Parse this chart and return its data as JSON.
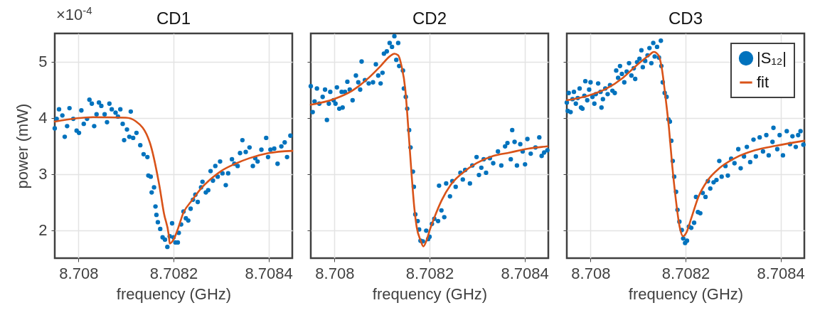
{
  "chart_data": [
    {
      "type": "scatter",
      "title": "CD1",
      "xlabel": "frequency (GHz)",
      "ylabel": "power (mW)",
      "annotations": [
        "×10$^{-4}$"
      ],
      "xlim": [
        8.70795,
        8.70845
      ],
      "ylim": [
        1.5,
        5.5
      ],
      "xticks": [
        8.708,
        8.7082,
        8.7084
      ],
      "yticks": [
        2,
        3,
        4,
        5
      ],
      "grid": true,
      "series": [
        {
          "type": "scatter",
          "marker": "circle",
          "color": "#0072bd",
          "x": [
            8.70795,
            8.707954,
            8.707959,
            8.707966,
            8.707971,
            8.707976,
            8.707981,
            8.707989,
            8.707996,
            8.708001,
            8.708006,
            8.708011,
            8.708018,
            8.708023,
            8.708028,
            8.708033,
            8.708038,
            8.708043,
            8.708048,
            8.708055,
            8.70806,
            8.708065,
            8.70807,
            8.708078,
            8.708083,
            8.708088,
            8.708093,
            8.708096,
            8.708102,
            8.708107,
            8.70811,
            8.708115,
            8.708122,
            8.70813,
            8.708137,
            8.708145,
            8.708147,
            8.708152,
            8.708154,
            8.708159,
            8.708162,
            8.708164,
            8.708167,
            8.708172,
            8.708177,
            8.708182,
            8.708187,
            8.708192,
            8.708197,
            8.7082,
            8.708204,
            8.708209,
            8.708211,
            8.708216,
            8.708221,
            8.708226,
            8.708231,
            8.708236,
            8.708241,
            8.708246,
            8.708251,
            8.708258,
            8.708261,
            8.708268,
            8.708273,
            8.708278,
            8.708283,
            8.708288,
            8.708293,
            8.708298,
            8.708303,
            8.70831,
            8.708315,
            8.708323,
            8.708328,
            8.708335,
            8.70834,
            8.708345,
            8.708352,
            8.70836,
            8.708367,
            8.708372,
            8.708377,
            8.708385,
            8.708395,
            8.708399,
            8.708404,
            8.708412,
            8.708419,
            8.708427,
            8.708434,
            8.708439,
            8.708446
          ],
          "values": [
            3.81,
            3.98,
            4.15,
            4.04,
            3.66,
            3.85,
            4.17,
            3.98,
            3.77,
            3.73,
            4.13,
            3.89,
            3.98,
            4.32,
            4.25,
            3.85,
            4.06,
            4.27,
            4.21,
            4.06,
            3.92,
            4.25,
            4.15,
            4.09,
            4.02,
            4.15,
            3.89,
            3.6,
            3.79,
            3.66,
            4.11,
            3.64,
            3.73,
            3.51,
            3.35,
            3.3,
            2.97,
            2.95,
            2.67,
            2.76,
            2.42,
            2.27,
            2.14,
            2.02,
            1.87,
            1.83,
            1.7,
            1.89,
            2.12,
            1.87,
            1.78,
            1.78,
            1.95,
            2.1,
            2.33,
            2.21,
            2.17,
            2.38,
            2.54,
            2.63,
            2.5,
            2.76,
            2.86,
            2.67,
            2.71,
            3.05,
            2.88,
            3.14,
            2.95,
            3.22,
            3.01,
            2.8,
            3.01,
            3.26,
            3.18,
            3.14,
            3.37,
            3.6,
            3.39,
            3.47,
            3.14,
            3.28,
            3.22,
            3.43,
            3.64,
            3.3,
            3.43,
            3.45,
            3.18,
            3.49,
            3.56,
            3.3,
            3.68
          ]
        },
        {
          "type": "line",
          "color": "#d95319",
          "x": [
            8.70795,
            8.70803,
            8.7081,
            8.70812,
            8.70815,
            8.70817,
            8.70818,
            8.70819,
            8.708192,
            8.7082,
            8.70821,
            8.70822,
            8.70824,
            8.70826,
            8.70828,
            8.7083,
            8.70833,
            8.70836,
            8.7084,
            8.70845
          ],
          "values": [
            3.93,
            4.01,
            4.0,
            3.94,
            3.56,
            2.8,
            2.29,
            1.91,
            1.76,
            1.83,
            2.04,
            2.29,
            2.54,
            2.76,
            2.92,
            3.05,
            3.18,
            3.28,
            3.37,
            3.41
          ]
        }
      ]
    },
    {
      "type": "scatter",
      "title": "CD2",
      "xlabel": "frequency (GHz)",
      "xlim": [
        8.70795,
        8.70845
      ],
      "ylim": [
        1.5,
        5.5
      ],
      "xticks": [
        8.708,
        8.7082,
        8.7084
      ],
      "yticks": [
        2,
        3,
        4,
        5
      ],
      "grid": true,
      "tick_labels": "x",
      "series": [
        {
          "type": "scatter",
          "marker": "circle",
          "color": "#0072bd",
          "x": [
            8.70795,
            8.707954,
            8.707958,
            8.707963,
            8.707968,
            8.707975,
            8.70798,
            8.707984,
            8.707988,
            8.707991,
            8.707998,
            8.708002,
            8.708005,
            8.70801,
            8.708015,
            8.708017,
            8.708022,
            8.708027,
            8.708032,
            8.708038,
            8.708045,
            8.70805,
            8.708054,
            8.708057,
            8.708064,
            8.708072,
            8.708081,
            8.708087,
            8.708092,
            8.708097,
            8.708101,
            8.708104,
            8.70811,
            8.708116,
            8.708121,
            8.708126,
            8.70813,
            8.708134,
            8.708136,
            8.708144,
            8.708146,
            8.70815,
            8.708153,
            8.708157,
            8.70816,
            8.708165,
            8.708167,
            8.70817,
            8.708175,
            8.708178,
            8.708181,
            8.708186,
            8.708193,
            8.708197,
            8.7082,
            8.708205,
            8.70821,
            8.708218,
            8.70822,
            8.708225,
            8.708231,
            8.708235,
            8.708243,
            8.708248,
            8.708255,
            8.708265,
            8.70827,
            8.708275,
            8.708285,
            8.70829,
            8.708299,
            8.708304,
            8.708309,
            8.708314,
            8.708319,
            8.708327,
            8.708334,
            8.708344,
            8.708351,
            8.708359,
            8.708364,
            8.708371,
            8.708374,
            8.708379,
            8.708384,
            8.708391,
            8.708396,
            8.708401,
            8.708406,
            8.708413,
            8.708423,
            8.708431,
            8.708436,
            8.708441,
            8.708448
          ],
          "values": [
            4.56,
            4.1,
            4.29,
            4.52,
            4.25,
            4.37,
            4.5,
            3.96,
            4.25,
            4.46,
            4.31,
            4.25,
            4.54,
            4.16,
            4.46,
            4.18,
            4.46,
            4.64,
            4.5,
            4.31,
            4.75,
            4.63,
            4.5,
            5.0,
            4.67,
            4.61,
            4.63,
            4.95,
            4.75,
            4.61,
            4.8,
            5.14,
            5.18,
            5.33,
            5.26,
            5.45,
            5.03,
            5.33,
            4.92,
            4.84,
            4.52,
            4.37,
            4.16,
            3.78,
            3.47,
            3.04,
            2.77,
            2.28,
            2.16,
            2.01,
            1.81,
            1.8,
            1.99,
            1.84,
            1.88,
            2.11,
            2.2,
            2.16,
            2.79,
            2.35,
            2.23,
            2.83,
            2.6,
            2.87,
            2.77,
            3.02,
            2.9,
            3.07,
            2.83,
            3.15,
            3.3,
            2.98,
            3.11,
            3.26,
            3.02,
            3.28,
            3.19,
            3.4,
            3.15,
            3.49,
            3.55,
            3.26,
            3.78,
            3.57,
            3.15,
            3.53,
            3.4,
            3.17,
            3.62,
            3.36,
            3.47,
            3.65,
            3.32,
            3.38,
            3.42
          ]
        },
        {
          "type": "line",
          "color": "#d95319",
          "x": [
            8.70795,
            8.707998,
            8.708037,
            8.708072,
            8.708097,
            8.708116,
            8.708126,
            8.708134,
            8.708141,
            8.708149,
            8.708153,
            8.708158,
            8.708163,
            8.708168,
            8.708173,
            8.708181,
            8.708187,
            8.708193,
            8.7082,
            8.70821,
            8.708225,
            8.708245,
            8.70827,
            8.708299,
            8.708334,
            8.708369,
            8.708408,
            8.708448
          ],
          "values": [
            4.23,
            4.33,
            4.48,
            4.71,
            4.92,
            5.09,
            5.14,
            5.11,
            4.92,
            4.5,
            4.08,
            3.49,
            2.9,
            2.39,
            2.05,
            1.82,
            1.71,
            1.8,
            1.99,
            2.22,
            2.52,
            2.81,
            3.02,
            3.19,
            3.32,
            3.38,
            3.45,
            3.49
          ]
        }
      ]
    },
    {
      "type": "scatter",
      "title": "CD3",
      "xlabel": "frequency (GHz)",
      "xlim": [
        8.70795,
        8.70845
      ],
      "ylim": [
        1.5,
        5.5
      ],
      "xticks": [
        8.708,
        8.7082,
        8.7084
      ],
      "yticks": [
        2,
        3,
        4,
        5
      ],
      "grid": true,
      "tick_labels": "x",
      "legend": "top right",
      "series": [
        {
          "type": "scatter",
          "marker": "circle",
          "name": "|S₁₂|",
          "color": "#0072bd",
          "x": [
            8.70795,
            8.707952,
            8.707954,
            8.707958,
            8.707962,
            8.707965,
            8.707969,
            8.707973,
            8.707977,
            8.70798,
            8.707983,
            8.707987,
            8.707989,
            8.707993,
            8.707997,
            8.708,
            8.708004,
            8.708008,
            8.708011,
            8.708016,
            8.708021,
            8.708023,
            8.708026,
            8.708031,
            8.708036,
            8.708041,
            8.708046,
            8.708051,
            8.708054,
            8.708058,
            8.708062,
            8.708066,
            8.708071,
            8.708076,
            8.708081,
            8.708086,
            8.708091,
            8.708094,
            8.708098,
            8.708103,
            8.708107,
            8.70811,
            8.708115,
            8.70812,
            8.708124,
            8.708128,
            8.708132,
            8.708135,
            8.70814,
            8.708144,
            8.708148,
            8.708149,
            8.708152,
            8.708156,
            8.70816,
            8.708164,
            8.708167,
            8.70817,
            8.708173,
            8.708176,
            8.70818,
            8.708183,
            8.708187,
            8.708192,
            8.708195,
            8.708199,
            8.708203,
            8.708207,
            8.708212,
            8.708218,
            8.708222,
            8.708226,
            8.708231,
            8.708236,
            8.708242,
            8.708247,
            8.708252,
            8.708259,
            8.708265,
            8.708271,
            8.708276,
            8.708284,
            8.708289,
            8.708296,
            8.708303,
            8.708311,
            8.708316,
            8.708323,
            8.708329,
            8.708336,
            8.708343,
            8.708348,
            8.708356,
            8.708363,
            8.70837,
            8.708375,
            8.708383,
            8.708385,
            8.708393,
            8.708398,
            8.708405,
            8.708413,
            8.70842,
            8.708425,
            8.708432,
            8.708437,
            8.708442,
            8.708448
          ],
          "values": [
            4.27,
            4.12,
            4.44,
            4.1,
            4.33,
            4.46,
            4.25,
            4.35,
            4.52,
            4.18,
            4.16,
            4.39,
            4.65,
            4.31,
            4.5,
            4.63,
            4.37,
            4.25,
            4.42,
            4.61,
            4.46,
            4.18,
            4.33,
            4.52,
            4.42,
            4.58,
            4.48,
            4.44,
            4.84,
            4.71,
            4.92,
            4.78,
            4.63,
            4.82,
            4.97,
            4.75,
            4.88,
            4.69,
            4.99,
            5.05,
            5.2,
            4.9,
            5.01,
            5.11,
            5.24,
            4.97,
            5.33,
            5.09,
            5.26,
            5.07,
            5.37,
            4.92,
            4.63,
            4.44,
            4.37,
            3.97,
            3.93,
            3.59,
            3.23,
            2.95,
            2.68,
            2.36,
            2.15,
            2.0,
            1.85,
            1.77,
            1.81,
            2.06,
            2.04,
            2.13,
            2.59,
            2.32,
            2.3,
            2.66,
            2.59,
            2.87,
            2.74,
            2.85,
            2.89,
            3.23,
            2.95,
            3.14,
            2.97,
            3.27,
            3.19,
            3.44,
            3.1,
            3.31,
            3.48,
            3.21,
            3.61,
            3.31,
            3.65,
            3.4,
            3.69,
            3.33,
            3.57,
            3.82,
            3.44,
            3.69,
            3.33,
            3.76,
            3.53,
            3.67,
            3.48,
            3.69,
            3.76,
            3.52
          ]
        },
        {
          "type": "line",
          "name": "fit",
          "color": "#d95319",
          "x": [
            8.70795,
            8.707994,
            8.708034,
            8.708068,
            8.708098,
            8.708123,
            8.708133,
            8.708143,
            8.70815,
            8.708157,
            8.708165,
            8.708172,
            8.70818,
            8.708187,
            8.708195,
            8.708202,
            8.708212,
            8.708227,
            8.708247,
            8.708271,
            8.708306,
            8.708346,
            8.70839,
            8.70845
          ],
          "values": [
            4.31,
            4.39,
            4.52,
            4.71,
            4.94,
            5.11,
            5.17,
            5.11,
            4.88,
            4.42,
            3.82,
            3.14,
            2.51,
            2.08,
            1.89,
            1.96,
            2.21,
            2.59,
            2.89,
            3.1,
            3.29,
            3.42,
            3.5,
            3.59
          ]
        }
      ]
    }
  ]
}
